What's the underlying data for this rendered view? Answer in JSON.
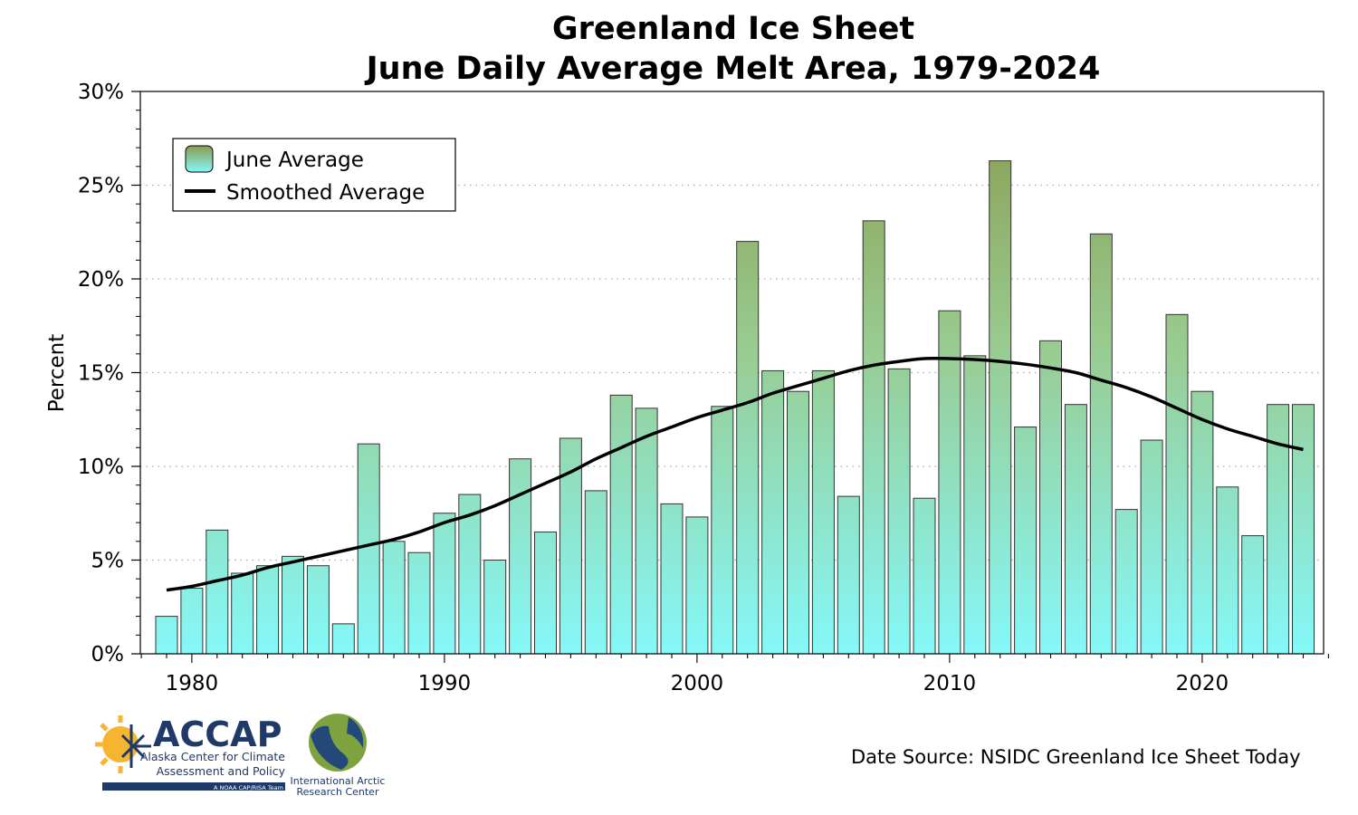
{
  "chart_data": {
    "type": "bar",
    "title": "Greenland Ice Sheet",
    "subtitle": "June Daily Average Melt Area, 1979-2024",
    "xlabel": "",
    "ylabel": "Percent",
    "xlim": [
      1978,
      2025
    ],
    "ylim": [
      0,
      30
    ],
    "x_ticks": [
      1980,
      1990,
      2000,
      2010,
      2020
    ],
    "y_ticks": [
      "0%",
      "5%",
      "10%",
      "15%",
      "20%",
      "25%",
      "30%"
    ],
    "y_tick_values": [
      0,
      5,
      10,
      15,
      20,
      25,
      30
    ],
    "grid": "horizontal dotted",
    "legend_placement": "top-left",
    "categories": [
      1979,
      1980,
      1981,
      1982,
      1983,
      1984,
      1985,
      1986,
      1987,
      1988,
      1989,
      1990,
      1991,
      1992,
      1993,
      1994,
      1995,
      1996,
      1997,
      1998,
      1999,
      2000,
      2001,
      2002,
      2003,
      2004,
      2005,
      2006,
      2007,
      2008,
      2009,
      2010,
      2011,
      2012,
      2013,
      2014,
      2015,
      2016,
      2017,
      2018,
      2019,
      2020,
      2021,
      2022,
      2023,
      2024
    ],
    "series": [
      {
        "name": "June Average",
        "type": "bar",
        "values": [
          2.0,
          3.5,
          6.6,
          4.3,
          4.7,
          5.2,
          4.7,
          1.6,
          11.2,
          6.0,
          5.4,
          7.5,
          8.5,
          5.0,
          10.4,
          6.5,
          11.5,
          8.7,
          13.8,
          13.1,
          8.0,
          7.3,
          13.2,
          22.0,
          15.1,
          14.0,
          15.1,
          8.4,
          23.1,
          15.2,
          8.3,
          18.3,
          15.9,
          26.3,
          12.1,
          16.7,
          13.3,
          22.4,
          7.7,
          11.4,
          18.1,
          14.0,
          8.9,
          6.3,
          13.3,
          13.3
        ]
      },
      {
        "name": "Smoothed Average",
        "type": "line",
        "values": [
          3.4,
          3.6,
          3.9,
          4.2,
          4.6,
          4.9,
          5.2,
          5.5,
          5.8,
          6.1,
          6.5,
          7.0,
          7.4,
          7.9,
          8.5,
          9.1,
          9.7,
          10.4,
          11.0,
          11.6,
          12.1,
          12.6,
          13.0,
          13.4,
          13.9,
          14.3,
          14.7,
          15.1,
          15.4,
          15.6,
          15.75,
          15.75,
          15.7,
          15.6,
          15.45,
          15.25,
          15.0,
          14.6,
          14.2,
          13.7,
          13.1,
          12.5,
          12.0,
          11.6,
          11.2,
          10.9
        ]
      }
    ],
    "colors": {
      "bar_top": "#8f9f55",
      "bar_bottom": "#85f8f8",
      "line": "#000000"
    }
  },
  "source": "Date Source: NSIDC Greenland Ice Sheet Today",
  "logos": {
    "accap": {
      "name": "ACCAP",
      "line1": "Alaska Center for Climate",
      "line2": "Assessment and Policy",
      "tag": "A NOAA CAP/RISA Team"
    },
    "iarc": {
      "line1": "International Arctic",
      "line2": "Research Center"
    }
  }
}
